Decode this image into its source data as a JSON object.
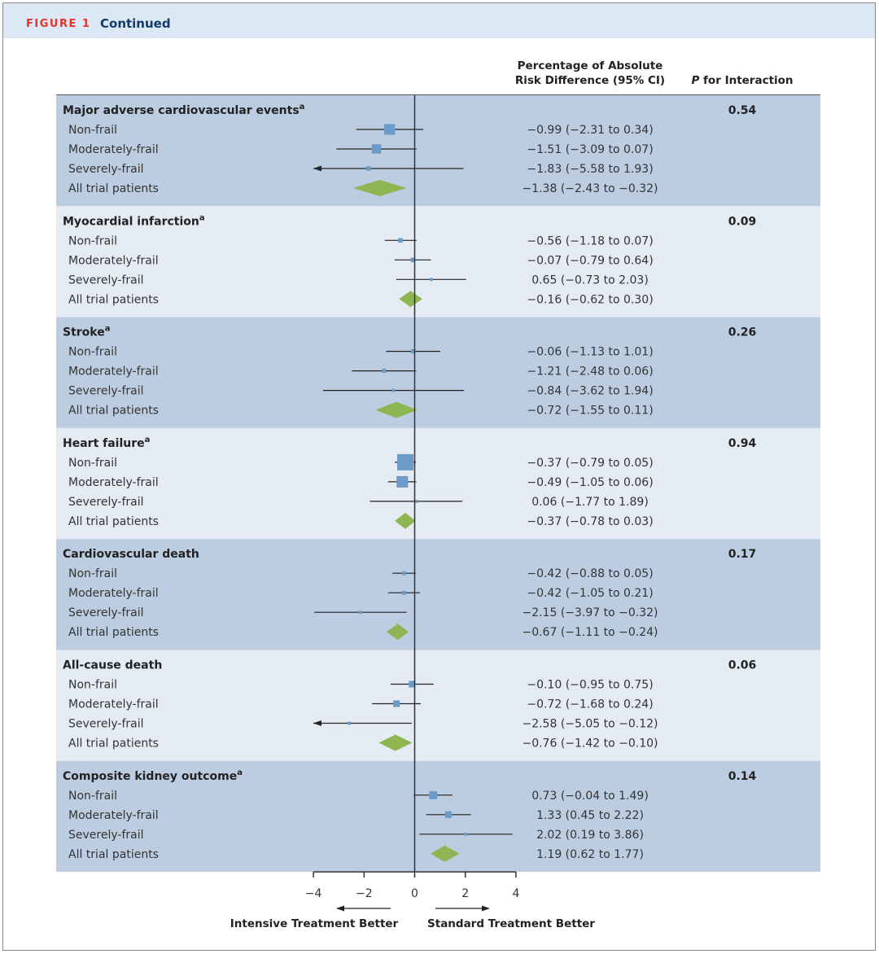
{
  "header": {
    "figure_label": "FIGURE 1",
    "continued": "Continued"
  },
  "chart_data": {
    "type": "forest",
    "columns": {
      "estimate_header_line1": "Percentage of Absolute",
      "estimate_header_line2": "Risk Difference (95% CI)",
      "p_header_italic": "P",
      "p_header_rest": " for Interaction"
    },
    "xlim": [
      -4,
      4
    ],
    "x_ticks": [
      -4,
      -2,
      0,
      2,
      4
    ],
    "x_tick_labels": [
      "−4",
      "−2",
      "0",
      "2",
      "4"
    ],
    "left_direction_label": "Intensive Treatment Better",
    "right_direction_label": "Standard Treatment Better",
    "colors": {
      "band_dark": "#bccde2",
      "band_light": "#e4ebf3",
      "square": "#6b9bc6",
      "diamond": "#8db552",
      "line": "#222222"
    },
    "outcomes": [
      {
        "title": "Major adverse cardiovascular events",
        "sup": "a",
        "p": "0.54",
        "rows": [
          {
            "label": "Non-frail",
            "est": -0.99,
            "lo": -2.31,
            "hi": 0.34,
            "text": "−0.99 (−2.31 to 0.34)",
            "weight": 0.6
          },
          {
            "label": "Moderately-frail",
            "est": -1.51,
            "lo": -3.09,
            "hi": 0.07,
            "text": "−1.51 (−3.09 to 0.07)",
            "weight": 0.5
          },
          {
            "label": "Severely-frail",
            "est": -1.83,
            "lo": -5.58,
            "hi": 1.93,
            "text": "−1.83 (−5.58 to 1.93)",
            "weight": 0.15
          },
          {
            "label": "All trial patients",
            "est": -1.38,
            "lo": -2.43,
            "hi": -0.32,
            "text": "−1.38 (−2.43 to −0.32)",
            "overall": true
          }
        ]
      },
      {
        "title": "Myocardial infarction",
        "sup": "a",
        "p": "0.09",
        "rows": [
          {
            "label": "Non-frail",
            "est": -0.56,
            "lo": -1.18,
            "hi": 0.07,
            "text": "−0.56 (−1.18 to 0.07)",
            "weight": 0.15
          },
          {
            "label": "Moderately-frail",
            "est": -0.07,
            "lo": -0.79,
            "hi": 0.64,
            "text": "−0.07 (−0.79 to 0.64)",
            "weight": 0.15
          },
          {
            "label": "Severely-frail",
            "est": 0.65,
            "lo": -0.73,
            "hi": 2.03,
            "text": "0.65 (−0.73 to 2.03)",
            "weight": 0.05
          },
          {
            "label": "All trial patients",
            "est": -0.16,
            "lo": -0.62,
            "hi": 0.3,
            "text": "−0.16 (−0.62 to 0.30)",
            "overall": true
          }
        ]
      },
      {
        "title": "Stroke",
        "sup": "a",
        "p": "0.26",
        "rows": [
          {
            "label": "Non-frail",
            "est": -0.06,
            "lo": -1.13,
            "hi": 1.01,
            "text": "−0.06 (−1.13 to 1.01)",
            "weight": 0.15
          },
          {
            "label": "Moderately-frail",
            "est": -1.21,
            "lo": -2.48,
            "hi": 0.06,
            "text": "−1.21 (−2.48 to 0.06)",
            "weight": 0.12
          },
          {
            "label": "Severely-frail",
            "est": -0.84,
            "lo": -3.62,
            "hi": 1.94,
            "text": "−0.84 (−3.62 to 1.94)",
            "weight": 0.05
          },
          {
            "label": "All trial patients",
            "est": -0.72,
            "lo": -1.55,
            "hi": 0.11,
            "text": "−0.72 (−1.55 to 0.11)",
            "overall": true
          }
        ]
      },
      {
        "title": "Heart failure",
        "sup": "a",
        "p": "0.94",
        "rows": [
          {
            "label": "Non-frail",
            "est": -0.37,
            "lo": -0.79,
            "hi": 0.05,
            "text": "−0.37 (−0.79 to 0.05)",
            "weight": 1.0
          },
          {
            "label": "Moderately-frail",
            "est": -0.49,
            "lo": -1.05,
            "hi": 0.06,
            "text": "−0.49 (−1.05 to 0.06)",
            "weight": 0.65
          },
          {
            "label": "Severely-frail",
            "est": 0.06,
            "lo": -1.77,
            "hi": 1.89,
            "text": "0.06 (−1.77 to 1.89)",
            "weight": 0.05
          },
          {
            "label": "All trial patients",
            "est": -0.37,
            "lo": -0.78,
            "hi": 0.03,
            "text": "−0.37 (−0.78 to 0.03)",
            "overall": true
          }
        ]
      },
      {
        "title": "Cardiovascular death",
        "sup": "",
        "p": "0.17",
        "rows": [
          {
            "label": "Non-frail",
            "est": -0.42,
            "lo": -0.88,
            "hi": 0.05,
            "text": "−0.42 (−0.88 to 0.05)",
            "weight": 0.1
          },
          {
            "label": "Moderately-frail",
            "est": -0.42,
            "lo": -1.05,
            "hi": 0.21,
            "text": "−0.42 (−1.05 to 0.21)",
            "weight": 0.1
          },
          {
            "label": "Severely-frail",
            "est": -2.15,
            "lo": -3.97,
            "hi": -0.32,
            "text": "−2.15 (−3.97 to −0.32)",
            "weight": 0.05
          },
          {
            "label": "All trial patients",
            "est": -0.67,
            "lo": -1.11,
            "hi": -0.24,
            "text": "−0.67 (−1.11 to −0.24)",
            "overall": true
          }
        ]
      },
      {
        "title": "All-cause death",
        "sup": "",
        "p": "0.06",
        "rows": [
          {
            "label": "Non-frail",
            "est": -0.1,
            "lo": -0.95,
            "hi": 0.75,
            "text": "−0.10 (−0.95 to 0.75)",
            "weight": 0.3
          },
          {
            "label": "Moderately-frail",
            "est": -0.72,
            "lo": -1.68,
            "hi": 0.24,
            "text": "−0.72 (−1.68 to 0.24)",
            "weight": 0.3
          },
          {
            "label": "Severely-frail",
            "est": -2.58,
            "lo": -5.05,
            "hi": -0.12,
            "text": "−2.58 (−5.05 to −0.12)",
            "weight": 0.05
          },
          {
            "label": "All trial patients",
            "est": -0.76,
            "lo": -1.42,
            "hi": -0.1,
            "text": "−0.76 (−1.42 to −0.10)",
            "overall": true
          }
        ]
      },
      {
        "title": "Composite kidney outcome",
        "sup": "a",
        "p": "0.14",
        "rows": [
          {
            "label": "Non-frail",
            "est": 0.73,
            "lo": -0.04,
            "hi": 1.49,
            "text": "0.73 (−0.04 to 1.49)",
            "weight": 0.4
          },
          {
            "label": "Moderately-frail",
            "est": 1.33,
            "lo": 0.45,
            "hi": 2.22,
            "text": "1.33 (0.45 to 2.22)",
            "weight": 0.3
          },
          {
            "label": "Severely-frail",
            "est": 2.02,
            "lo": 0.19,
            "hi": 3.86,
            "text": "2.02 (0.19 to 3.86)",
            "weight": 0.05
          },
          {
            "label": "All trial patients",
            "est": 1.19,
            "lo": 0.62,
            "hi": 1.77,
            "text": "1.19 (0.62 to 1.77)",
            "overall": true
          }
        ]
      }
    ]
  }
}
